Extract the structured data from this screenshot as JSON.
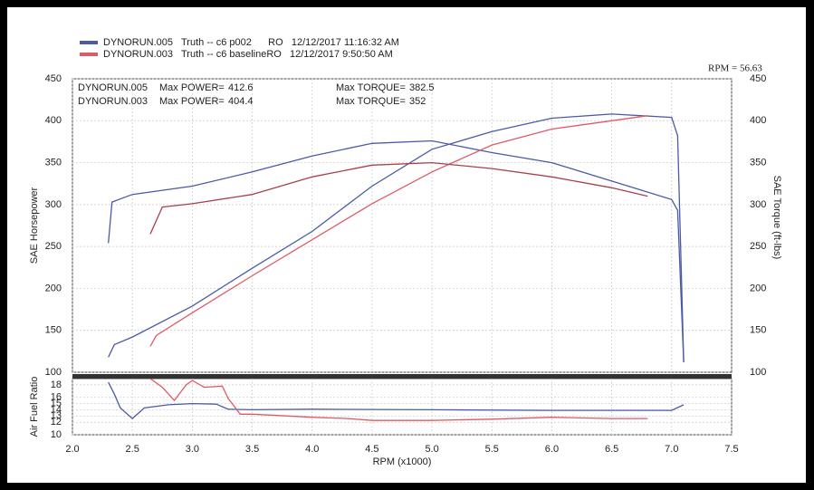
{
  "legend": [
    {
      "text": "DYNORUN.005   Truth -- c6 p002      RO   12/12/2017 11:16:32 AM",
      "color": "#4a5aa8"
    },
    {
      "text": "DYNORUN.003   Truth -- c6 baselineRO   12/12/2017 9:50:50 AM",
      "color": "#e05a66"
    }
  ],
  "rpm_note": "RPM = 56.63",
  "chart_data": [
    {
      "type": "line",
      "ylabel": "SAE Horsepower",
      "y2label": "SAE Torque (ft-lbs)",
      "xlim": [
        2,
        7.5
      ],
      "ylim": [
        100,
        450
      ],
      "yticks": [
        100,
        150,
        200,
        250,
        300,
        350,
        400,
        450
      ],
      "y2lim": [
        100,
        450
      ],
      "y2ticks": [
        100,
        150,
        200,
        250,
        300,
        350,
        400,
        450
      ],
      "grid": true,
      "summary": [
        {
          "run": "DYNORUN.005",
          "power_text": "Max POWER=",
          "power": 412.6,
          "torque_text": "Max TORQUE=",
          "torque": 382.5,
          "color": "#4a5aa8"
        },
        {
          "run": "DYNORUN.003",
          "power_text": "Max POWER=",
          "power": 404.4,
          "torque_text": "Max TORQUE=",
          "torque": 352.0,
          "color": "#e05a66"
        }
      ],
      "series": [
        {
          "color": "#4a5aa8",
          "x": [
            2.3,
            2.35,
            2.5,
            3.0,
            3.5,
            4.0,
            4.5,
            5.0,
            5.5,
            6.0,
            6.5,
            7.0,
            7.05,
            7.1
          ],
          "values": [
            118,
            133,
            142,
            179,
            224,
            268,
            322,
            366,
            387,
            403,
            408,
            404,
            382,
            112
          ]
        },
        {
          "color": "#4a5aa8",
          "axis": "y2",
          "x": [
            2.3,
            2.33,
            2.5,
            3.0,
            3.5,
            4.0,
            4.5,
            5.0,
            5.5,
            6.0,
            6.5,
            7.0,
            7.05,
            7.1
          ],
          "values": [
            254,
            303,
            312,
            322,
            339,
            358,
            373,
            376,
            362,
            350,
            328,
            306,
            293,
            112
          ]
        },
        {
          "color": "#e05a66",
          "x": [
            2.65,
            2.7,
            3.0,
            3.5,
            4.0,
            4.5,
            5.0,
            5.5,
            6.0,
            6.5,
            6.8
          ],
          "values": [
            131,
            144,
            171,
            215,
            258,
            301,
            339,
            371,
            390,
            400,
            406
          ]
        },
        {
          "color": "#a8404c",
          "axis": "y2",
          "x": [
            2.65,
            2.75,
            3.0,
            3.5,
            4.0,
            4.5,
            5.0,
            5.5,
            6.0,
            6.5,
            6.8
          ],
          "values": [
            265,
            297,
            301,
            312,
            333,
            347,
            350,
            343,
            333,
            320,
            310
          ]
        }
      ]
    },
    {
      "type": "line",
      "ylabel": "Air Fuel Ratio",
      "xlabel": "RPM (x1000)",
      "xlim": [
        2,
        7.5
      ],
      "xticks": [
        {
          "value": 2,
          "label": "2.0"
        },
        {
          "value": 2.5,
          "label": "2.5"
        },
        {
          "value": 3,
          "label": "3.0"
        },
        {
          "value": 3.5,
          "label": "3.5"
        },
        {
          "value": 4,
          "label": "4.0"
        },
        {
          "value": 4.5,
          "label": "4.5"
        },
        {
          "value": 5,
          "label": "5.0"
        },
        {
          "value": 5.5,
          "label": "5.5"
        },
        {
          "value": 6,
          "label": "6.0"
        },
        {
          "value": 6.5,
          "label": "6.5"
        },
        {
          "value": 7,
          "label": "7.0"
        },
        {
          "value": 7.5,
          "label": "7.5"
        }
      ],
      "ylim": [
        10,
        19
      ],
      "yticks": [
        10,
        12,
        13,
        14,
        15,
        16,
        18
      ],
      "grid": true,
      "series": [
        {
          "color": "#4a5aa8",
          "x": [
            2.3,
            2.35,
            2.4,
            2.5,
            2.6,
            2.8,
            3.0,
            3.2,
            3.3,
            3.5,
            4.0,
            5.0,
            6.0,
            7.0,
            7.1
          ],
          "values": [
            18.4,
            16.5,
            14.3,
            12.6,
            14.3,
            14.8,
            15,
            14.9,
            14.1,
            14.0,
            14.1,
            14.0,
            13.9,
            13.9,
            14.8
          ]
        },
        {
          "color": "#e05a66",
          "x": [
            2.65,
            2.75,
            2.85,
            2.95,
            3.0,
            3.1,
            3.25,
            3.3,
            3.4,
            3.5,
            3.8,
            4.0,
            4.3,
            4.5,
            5.0,
            5.5,
            6.0,
            6.5,
            6.8
          ],
          "values": [
            19,
            17.6,
            15.5,
            18,
            18.7,
            17.6,
            17.8,
            15.8,
            13.3,
            13.3,
            13.0,
            12.8,
            12.6,
            12.3,
            12.3,
            12.5,
            12.8,
            12.6,
            12.6
          ]
        }
      ]
    }
  ]
}
